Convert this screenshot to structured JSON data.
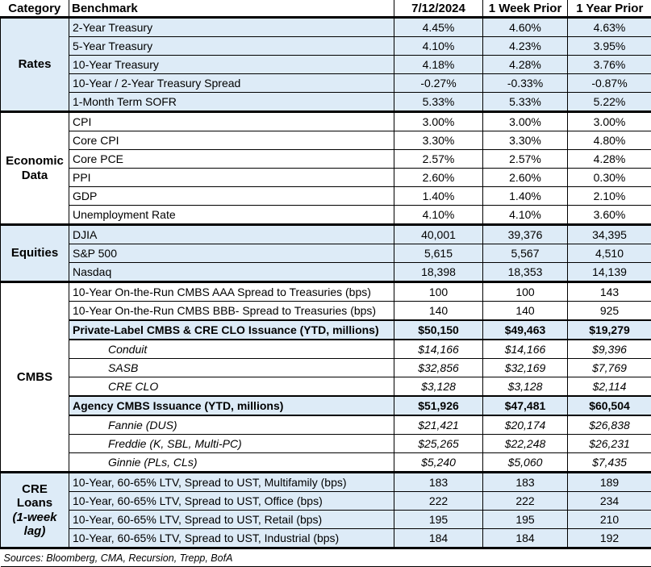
{
  "header": {
    "category": "Category",
    "benchmark": "Benchmark",
    "date": "7/12/2024",
    "week_prior": "1 Week Prior",
    "year_prior": "1 Year Prior"
  },
  "sections": [
    {
      "id": "rates",
      "category": "Rates",
      "category_note": "",
      "shade": true,
      "rows": [
        {
          "label": "2-Year Treasury",
          "style": "normal",
          "values": [
            "4.45%",
            "4.60%",
            "4.63%"
          ]
        },
        {
          "label": "5-Year Treasury",
          "style": "normal",
          "values": [
            "4.10%",
            "4.23%",
            "3.95%"
          ]
        },
        {
          "label": "10-Year Treasury",
          "style": "normal",
          "values": [
            "4.18%",
            "4.28%",
            "3.76%"
          ]
        },
        {
          "label": "10-Year / 2-Year Treasury Spread",
          "style": "normal",
          "values": [
            "-0.27%",
            "-0.33%",
            "-0.87%"
          ]
        },
        {
          "label": "1-Month Term SOFR",
          "style": "normal",
          "values": [
            "5.33%",
            "5.33%",
            "5.22%"
          ]
        }
      ]
    },
    {
      "id": "economic-data",
      "category": "Economic Data",
      "category_note": "",
      "shade": false,
      "rows": [
        {
          "label": "CPI",
          "style": "normal",
          "values": [
            "3.00%",
            "3.00%",
            "3.00%"
          ]
        },
        {
          "label": "Core CPI",
          "style": "normal",
          "values": [
            "3.30%",
            "3.30%",
            "4.80%"
          ]
        },
        {
          "label": "Core PCE",
          "style": "normal",
          "values": [
            "2.57%",
            "2.57%",
            "4.28%"
          ]
        },
        {
          "label": "PPI",
          "style": "normal",
          "values": [
            "2.60%",
            "2.60%",
            "0.30%"
          ]
        },
        {
          "label": "GDP",
          "style": "normal",
          "values": [
            "1.40%",
            "1.40%",
            "2.10%"
          ]
        },
        {
          "label": "Unemployment Rate",
          "style": "normal",
          "values": [
            "4.10%",
            "4.10%",
            "3.60%"
          ]
        }
      ]
    },
    {
      "id": "equities",
      "category": "Equities",
      "category_note": "",
      "shade": true,
      "rows": [
        {
          "label": "DJIA",
          "style": "normal",
          "values": [
            "40,001",
            "39,376",
            "34,395"
          ]
        },
        {
          "label": "S&P 500",
          "style": "normal",
          "values": [
            "5,615",
            "5,567",
            "4,510"
          ]
        },
        {
          "label": "Nasdaq",
          "style": "normal",
          "values": [
            "18,398",
            "18,353",
            "14,139"
          ]
        }
      ]
    },
    {
      "id": "cmbs",
      "category": "CMBS",
      "category_note": "",
      "shade": false,
      "rows": [
        {
          "label": "10-Year On-the-Run CMBS AAA Spread to Treasuries (bps)",
          "style": "normal",
          "values": [
            "100",
            "100",
            "143"
          ]
        },
        {
          "label": "10-Year On-the-Run CMBS BBB- Spread to Treasuries (bps)",
          "style": "normal",
          "values": [
            "140",
            "140",
            "925"
          ]
        },
        {
          "label": "Private-Label CMBS & CRE CLO Issuance (YTD, millions)",
          "style": "bold",
          "values": [
            "$50,150",
            "$49,463",
            "$19,279"
          ]
        },
        {
          "label": "Conduit",
          "style": "subrow",
          "values": [
            "$14,166",
            "$14,166",
            "$9,396"
          ]
        },
        {
          "label": "SASB",
          "style": "subrow",
          "values": [
            "$32,856",
            "$32,169",
            "$7,769"
          ]
        },
        {
          "label": "CRE CLO",
          "style": "subrow",
          "values": [
            "$3,128",
            "$3,128",
            "$2,114"
          ]
        },
        {
          "label": "Agency CMBS Issuance (YTD, millions)",
          "style": "bold",
          "values": [
            "$51,926",
            "$47,481",
            "$60,504"
          ]
        },
        {
          "label": "Fannie (DUS)",
          "style": "subrow",
          "values": [
            "$21,421",
            "$20,174",
            "$26,838"
          ]
        },
        {
          "label": "Freddie (K, SBL, Multi-PC)",
          "style": "subrow",
          "values": [
            "$25,265",
            "$22,248",
            "$26,231"
          ]
        },
        {
          "label": "Ginnie (PLs, CLs)",
          "style": "subrow",
          "values": [
            "$5,240",
            "$5,060",
            "$7,435"
          ]
        }
      ]
    },
    {
      "id": "cre-loans",
      "category": "CRE Loans",
      "category_note": "(1-week lag)",
      "shade": true,
      "rows": [
        {
          "label": "10-Year, 60-65% LTV, Spread to UST, Multifamily (bps)",
          "style": "normal",
          "values": [
            "183",
            "183",
            "189"
          ]
        },
        {
          "label": "10-Year, 60-65% LTV, Spread to UST, Office (bps)",
          "style": "normal",
          "values": [
            "222",
            "222",
            "234"
          ]
        },
        {
          "label": "10-Year, 60-65% LTV, Spread to UST, Retail (bps)",
          "style": "normal",
          "values": [
            "195",
            "195",
            "210"
          ]
        },
        {
          "label": "10-Year, 60-65% LTV, Spread to UST, Industrial (bps)",
          "style": "normal",
          "values": [
            "184",
            "184",
            "192"
          ]
        }
      ]
    }
  ],
  "footer": {
    "sources": "Sources: Bloomberg, CMA, Recursion, Trepp, BofA"
  },
  "colors": {
    "shade": "#DDEBF7",
    "border": "#000000",
    "text": "#000000"
  }
}
